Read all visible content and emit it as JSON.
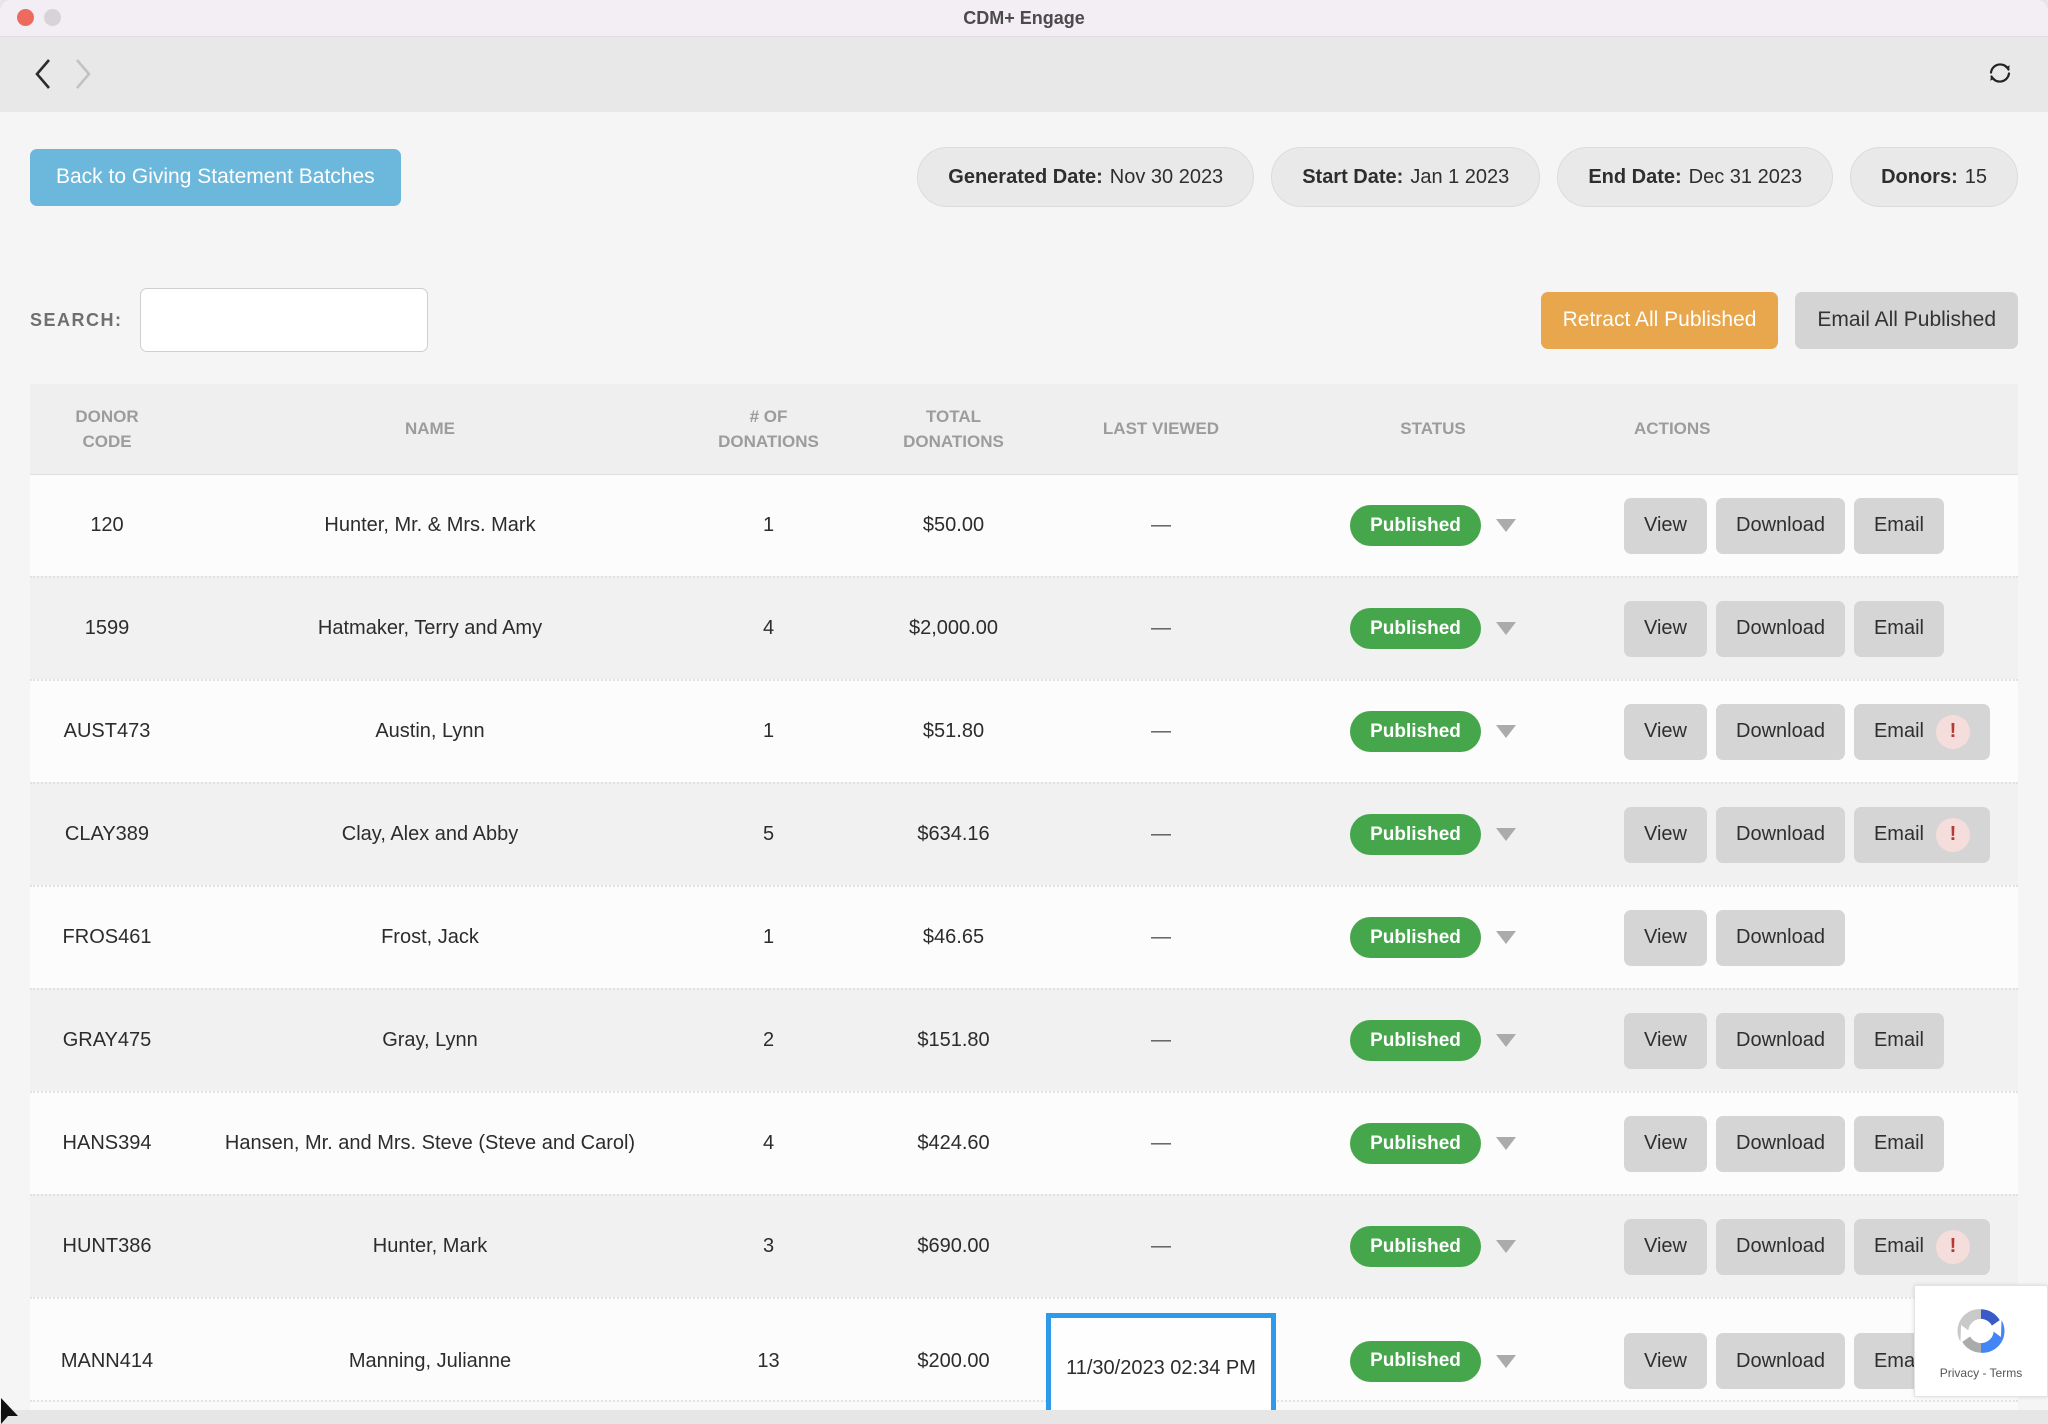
{
  "window": {
    "title": "CDM+ Engage",
    "traffic_lights": [
      "close",
      "minimize"
    ]
  },
  "toolbar": {
    "icons": [
      "back-chevron",
      "forward-chevron",
      "refresh"
    ]
  },
  "actions_bar": {
    "back_button": "Back to Giving Statement Batches",
    "retract_button": "Retract All Published",
    "email_all_button": "Email All Published"
  },
  "filters": [
    {
      "label": "Generated Date:",
      "value": "Nov 30 2023"
    },
    {
      "label": "Start Date:",
      "value": "Jan 1 2023"
    },
    {
      "label": "End Date:",
      "value": "Dec 31 2023"
    },
    {
      "label": "Donors:",
      "value": "15"
    }
  ],
  "search": {
    "label": "SEARCH:",
    "value": "",
    "placeholder": ""
  },
  "colors": {
    "accent_blue": "#6CB8DC",
    "accent_orange": "#E8A64D",
    "status_green": "#46A64C",
    "highlight_blue": "#2D9BE9",
    "alert_red": "#B43A32"
  },
  "table": {
    "columns": [
      "DONOR\nCODE",
      "NAME",
      "# OF\nDONATIONS",
      "TOTAL\nDONATIONS",
      "LAST VIEWED",
      "STATUS",
      "ACTIONS"
    ],
    "action_labels": {
      "view": "View",
      "download": "Download",
      "email": "Email"
    },
    "email_alert_symbol": "!",
    "empty_last_viewed": "—",
    "rows": [
      {
        "donor_code": "120",
        "name": "Hunter, Mr. & Mrs. Mark",
        "num_donations": "1",
        "total_donations": "$50.00",
        "last_viewed": "—",
        "status": "Published",
        "actions": [
          "view",
          "download",
          "email"
        ],
        "email_alert": false,
        "highlighted": false
      },
      {
        "donor_code": "1599",
        "name": "Hatmaker, Terry and Amy",
        "num_donations": "4",
        "total_donations": "$2,000.00",
        "last_viewed": "—",
        "status": "Published",
        "actions": [
          "view",
          "download",
          "email"
        ],
        "email_alert": false,
        "highlighted": false
      },
      {
        "donor_code": "AUST473",
        "name": "Austin, Lynn",
        "num_donations": "1",
        "total_donations": "$51.80",
        "last_viewed": "—",
        "status": "Published",
        "actions": [
          "view",
          "download",
          "email"
        ],
        "email_alert": true,
        "highlighted": false
      },
      {
        "donor_code": "CLAY389",
        "name": "Clay, Alex and Abby",
        "num_donations": "5",
        "total_donations": "$634.16",
        "last_viewed": "—",
        "status": "Published",
        "actions": [
          "view",
          "download",
          "email"
        ],
        "email_alert": true,
        "highlighted": false
      },
      {
        "donor_code": "FROS461",
        "name": "Frost, Jack",
        "num_donations": "1",
        "total_donations": "$46.65",
        "last_viewed": "—",
        "status": "Published",
        "actions": [
          "view",
          "download"
        ],
        "email_alert": false,
        "highlighted": false
      },
      {
        "donor_code": "GRAY475",
        "name": "Gray, Lynn",
        "num_donations": "2",
        "total_donations": "$151.80",
        "last_viewed": "—",
        "status": "Published",
        "actions": [
          "view",
          "download",
          "email"
        ],
        "email_alert": false,
        "highlighted": false
      },
      {
        "donor_code": "HANS394",
        "name": "Hansen, Mr. and Mrs. Steve (Steve and Carol)",
        "num_donations": "4",
        "total_donations": "$424.60",
        "last_viewed": "—",
        "status": "Published",
        "actions": [
          "view",
          "download",
          "email"
        ],
        "email_alert": false,
        "highlighted": false
      },
      {
        "donor_code": "HUNT386",
        "name": "Hunter, Mark",
        "num_donations": "3",
        "total_donations": "$690.00",
        "last_viewed": "—",
        "status": "Published",
        "actions": [
          "view",
          "download",
          "email"
        ],
        "email_alert": true,
        "highlighted": false
      },
      {
        "donor_code": "MANN414",
        "name": "Manning, Julianne",
        "num_donations": "13",
        "total_donations": "$200.00",
        "last_viewed": "11/30/2023 02:34 PM",
        "status": "Published",
        "actions": [
          "view",
          "download",
          "email"
        ],
        "email_alert": false,
        "highlighted": true
      }
    ]
  },
  "recaptcha": {
    "privacy_terms": "Privacy - Terms"
  }
}
